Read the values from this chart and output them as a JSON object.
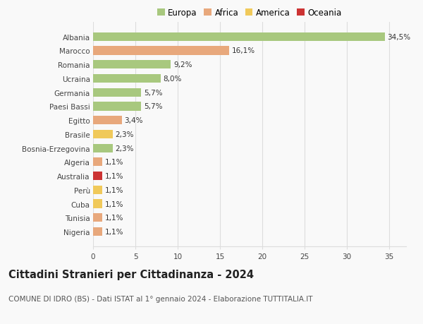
{
  "countries": [
    "Albania",
    "Marocco",
    "Romania",
    "Ucraina",
    "Germania",
    "Paesi Bassi",
    "Egitto",
    "Brasile",
    "Bosnia-Erzegovina",
    "Algeria",
    "Australia",
    "Perù",
    "Cuba",
    "Tunisia",
    "Nigeria"
  ],
  "values": [
    34.5,
    16.1,
    9.2,
    8.0,
    5.7,
    5.7,
    3.4,
    2.3,
    2.3,
    1.1,
    1.1,
    1.1,
    1.1,
    1.1,
    1.1
  ],
  "labels": [
    "34,5%",
    "16,1%",
    "9,2%",
    "8,0%",
    "5,7%",
    "5,7%",
    "3,4%",
    "2,3%",
    "2,3%",
    "1,1%",
    "1,1%",
    "1,1%",
    "1,1%",
    "1,1%",
    "1,1%"
  ],
  "continents": [
    "Europa",
    "Africa",
    "Europa",
    "Europa",
    "Europa",
    "Europa",
    "Africa",
    "America",
    "Europa",
    "Africa",
    "Oceania",
    "America",
    "America",
    "Africa",
    "Africa"
  ],
  "continent_colors": {
    "Europa": "#a8c87e",
    "Africa": "#e8a87c",
    "America": "#f0c95a",
    "Oceania": "#cc3333"
  },
  "legend_order": [
    "Europa",
    "Africa",
    "America",
    "Oceania"
  ],
  "title": "Cittadini Stranieri per Cittadinanza - 2024",
  "subtitle": "COMUNE DI IDRO (BS) - Dati ISTAT al 1° gennaio 2024 - Elaborazione TUTTITALIA.IT",
  "xlim": [
    0,
    37
  ],
  "xticks": [
    0,
    5,
    10,
    15,
    20,
    25,
    30,
    35
  ],
  "background_color": "#f9f9f9",
  "grid_color": "#dddddd",
  "title_fontsize": 10.5,
  "subtitle_fontsize": 7.5,
  "label_fontsize": 7.5,
  "tick_fontsize": 7.5,
  "legend_fontsize": 8.5
}
